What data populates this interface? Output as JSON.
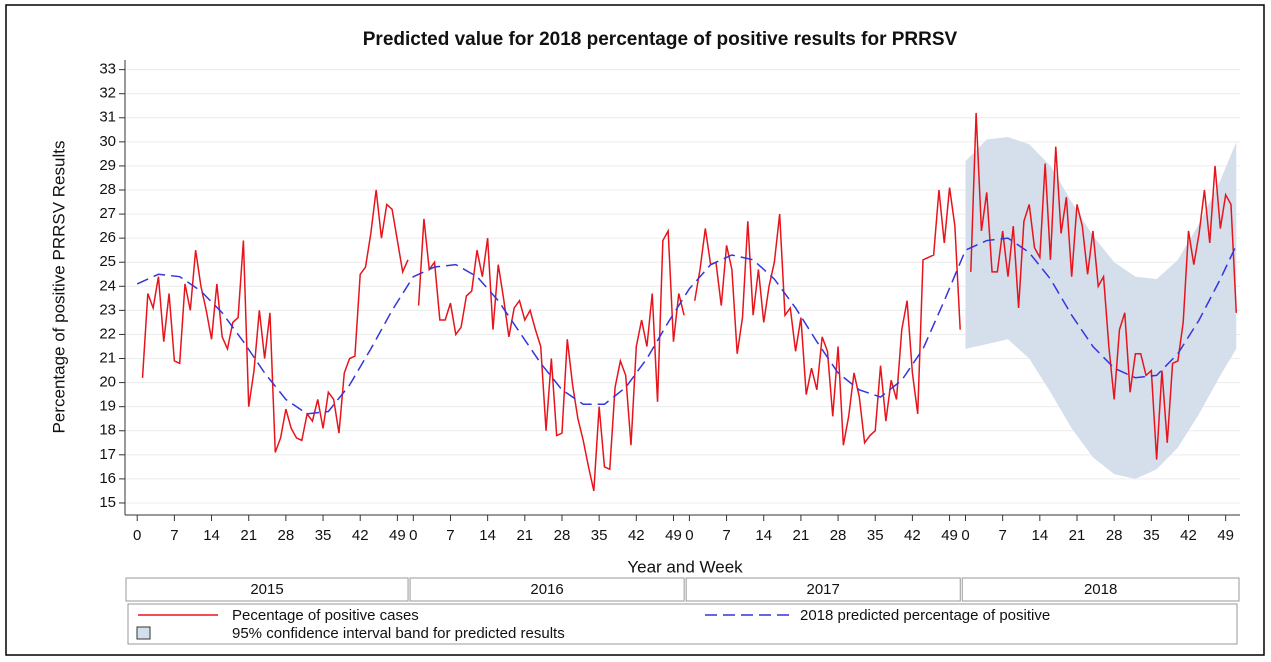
{
  "chart_data": {
    "type": "line",
    "title": "Predicted value for 2018 percentage of positive results for PRRSV",
    "xlabel": "Year and Week",
    "ylabel": "Percentage of positive PRRSV Results",
    "legend": "bottom",
    "grid": true,
    "xlim": [
      -2.3,
      207.7
    ],
    "ylim": [
      14.5,
      33.4
    ],
    "yticks": [
      15,
      16,
      17,
      18,
      19,
      20,
      21,
      22,
      23,
      24,
      25,
      26,
      27,
      28,
      29,
      30,
      31,
      32,
      33
    ],
    "xticks": [
      0,
      7,
      14,
      21,
      28,
      35,
      42,
      49,
      {
        "value": 52,
        "label": "0"
      },
      {
        "value": 59,
        "label": "7"
      },
      {
        "value": 66,
        "label": "14"
      },
      {
        "value": 73,
        "label": "21"
      },
      {
        "value": 80,
        "label": "28"
      },
      {
        "value": 87,
        "label": "35"
      },
      {
        "value": 94,
        "label": "42"
      },
      {
        "value": 101,
        "label": "49"
      },
      {
        "value": 104,
        "label": "0"
      },
      {
        "value": 111,
        "label": "7"
      },
      {
        "value": 118,
        "label": "14"
      },
      {
        "value": 125,
        "label": "21"
      },
      {
        "value": 132,
        "label": "28"
      },
      {
        "value": 139,
        "label": "35"
      },
      {
        "value": 146,
        "label": "42"
      },
      {
        "value": 153,
        "label": "49"
      },
      {
        "value": 156,
        "label": "0"
      },
      {
        "value": 163,
        "label": "7"
      },
      {
        "value": 170,
        "label": "14"
      },
      {
        "value": 177,
        "label": "21"
      },
      {
        "value": 184,
        "label": "28"
      },
      {
        "value": 191,
        "label": "35"
      },
      {
        "value": 198,
        "label": "42"
      },
      {
        "value": 205,
        "label": "49"
      }
    ],
    "x_groups": [
      "2015",
      "2016",
      "2017",
      "2018"
    ],
    "x": [
      0,
      1,
      2,
      3,
      4,
      5,
      6,
      7,
      8,
      9,
      10,
      11,
      12,
      13,
      14,
      15,
      16,
      17,
      18,
      19,
      20,
      21,
      22,
      23,
      24,
      25,
      26,
      27,
      28,
      29,
      30,
      31,
      32,
      33,
      34,
      35,
      36,
      37,
      38,
      39,
      40,
      41,
      42,
      43,
      44,
      45,
      46,
      47,
      48,
      49,
      50,
      51,
      52,
      53,
      54,
      55,
      56,
      57,
      58,
      59,
      60,
      61,
      62,
      63,
      64,
      65,
      66,
      67,
      68,
      69,
      70,
      71,
      72,
      73,
      74,
      75,
      76,
      77,
      78,
      79,
      80,
      81,
      82,
      83,
      84,
      85,
      86,
      87,
      88,
      89,
      90,
      91,
      92,
      93,
      94,
      95,
      96,
      97,
      98,
      99,
      100,
      101,
      102,
      103,
      104,
      105,
      106,
      107,
      108,
      109,
      110,
      111,
      112,
      113,
      114,
      115,
      116,
      117,
      118,
      119,
      120,
      121,
      122,
      123,
      124,
      125,
      126,
      127,
      128,
      129,
      130,
      131,
      132,
      133,
      134,
      135,
      136,
      137,
      138,
      139,
      140,
      141,
      142,
      143,
      144,
      145,
      146,
      147,
      148,
      149,
      150,
      151,
      152,
      153,
      154,
      155,
      156,
      157,
      158,
      159,
      160,
      161,
      162,
      163,
      164,
      165,
      166,
      167,
      168,
      169,
      170,
      171,
      172,
      173,
      174,
      175,
      176,
      177,
      178,
      179,
      180,
      181,
      182,
      183,
      184,
      185,
      186,
      187,
      188,
      189,
      190,
      191,
      192,
      193,
      194,
      195,
      196,
      197,
      198,
      199,
      200,
      201,
      202,
      203,
      204,
      205,
      206,
      207
    ],
    "series": [
      {
        "name": "Pecentage of positive cases",
        "color": "#e8141c",
        "values": [
          null,
          20.2,
          23.7,
          23.1,
          24.4,
          21.7,
          23.7,
          20.9,
          20.8,
          24.1,
          23.0,
          25.5,
          24.0,
          23.0,
          21.8,
          24.1,
          21.9,
          21.4,
          22.5,
          22.7,
          25.9,
          19.0,
          20.5,
          23.0,
          21.0,
          22.9,
          17.1,
          17.7,
          18.9,
          18.1,
          17.7,
          17.6,
          18.7,
          18.4,
          19.3,
          18.1,
          19.6,
          19.3,
          17.9,
          20.4,
          21.0,
          21.1,
          24.5,
          24.8,
          26.2,
          28.0,
          26.0,
          27.4,
          27.2,
          25.9,
          24.6,
          25.1,
          null,
          23.2,
          26.8,
          24.7,
          25.0,
          22.6,
          22.6,
          23.3,
          22.0,
          22.3,
          23.6,
          23.8,
          25.5,
          24.4,
          26.0,
          22.2,
          24.9,
          23.5,
          21.9,
          23.1,
          23.4,
          22.6,
          23.0,
          22.2,
          21.5,
          18.0,
          21.0,
          17.8,
          17.9,
          21.8,
          19.9,
          18.5,
          17.6,
          16.5,
          15.5,
          19.0,
          16.5,
          16.4,
          19.8,
          20.9,
          20.3,
          17.4,
          21.5,
          22.6,
          21.5,
          23.7,
          19.2,
          25.9,
          26.3,
          21.7,
          23.7,
          22.8,
          null,
          23.4,
          24.7,
          26.4,
          24.9,
          25.0,
          23.2,
          25.7,
          24.7,
          21.2,
          22.7,
          26.7,
          22.8,
          24.7,
          22.5,
          24.0,
          25.0,
          27.0,
          22.8,
          23.1,
          21.3,
          22.7,
          19.5,
          20.6,
          19.7,
          21.9,
          21.3,
          18.6,
          21.5,
          17.4,
          18.6,
          20.4,
          19.4,
          17.5,
          17.8,
          18.0,
          20.7,
          18.4,
          20.1,
          19.3,
          22.2,
          23.4,
          20.4,
          18.7,
          25.1,
          25.2,
          25.3,
          28.0,
          25.8,
          28.1,
          26.5,
          22.2,
          null,
          24.6,
          31.2,
          26.3,
          27.9,
          24.6,
          24.6,
          26.3,
          24.4,
          26.5,
          23.1,
          26.7,
          27.4,
          25.6,
          25.2,
          29.1,
          25.1,
          29.8,
          26.2,
          27.7,
          24.4,
          27.4,
          26.5,
          24.5,
          26.3,
          24.0,
          24.4,
          21.5,
          19.3,
          22.2,
          22.9,
          19.6,
          21.2,
          21.2,
          20.3,
          20.5,
          16.8,
          20.5,
          17.5,
          20.8,
          20.9,
          22.5,
          26.3,
          24.9,
          26.2,
          28.0,
          25.8,
          29.0,
          26.4,
          27.8,
          27.4,
          22.9
        ]
      },
      {
        "name": "2018 predicted percentage of positive",
        "color": "#3535dc",
        "dashed": true,
        "x": [
          0,
          4,
          8,
          12,
          16,
          20,
          24,
          28,
          32,
          36,
          40,
          44,
          48,
          52,
          56,
          60,
          64,
          68,
          72,
          76,
          80,
          84,
          88,
          92,
          96,
          100,
          104,
          108,
          112,
          116,
          120,
          124,
          128,
          132,
          136,
          140,
          144,
          148,
          152,
          156,
          160,
          164,
          168,
          172,
          176,
          180,
          184,
          188,
          192,
          196,
          200,
          204,
          207
        ],
        "values": [
          24.1,
          24.5,
          24.4,
          23.8,
          22.9,
          21.7,
          20.4,
          19.3,
          18.7,
          18.8,
          19.9,
          21.4,
          23.0,
          24.4,
          24.8,
          24.9,
          24.4,
          23.4,
          22.1,
          20.8,
          19.7,
          19.1,
          19.1,
          19.8,
          21.0,
          22.5,
          23.9,
          24.9,
          25.3,
          25.1,
          24.3,
          23.1,
          21.7,
          20.4,
          19.7,
          19.4,
          20.1,
          21.4,
          23.4,
          25.5,
          25.9,
          26.0,
          25.4,
          24.3,
          22.8,
          21.5,
          20.6,
          20.2,
          20.3,
          21.2,
          22.6,
          24.3,
          25.7
        ]
      }
    ],
    "band": {
      "name": "95% confidence interval band for predicted results",
      "color": "#d5dfec",
      "x": [
        156,
        160,
        164,
        168,
        172,
        176,
        180,
        184,
        188,
        192,
        196,
        200,
        204,
        207
      ],
      "lower": [
        21.4,
        21.6,
        21.8,
        21.0,
        19.6,
        18.1,
        16.9,
        16.2,
        16.0,
        16.4,
        17.3,
        18.7,
        20.3,
        21.4
      ],
      "upper": [
        29.2,
        30.1,
        30.2,
        29.9,
        29.0,
        27.5,
        26.1,
        25.0,
        24.4,
        24.3,
        25.1,
        26.6,
        28.4,
        30.0
      ]
    }
  }
}
